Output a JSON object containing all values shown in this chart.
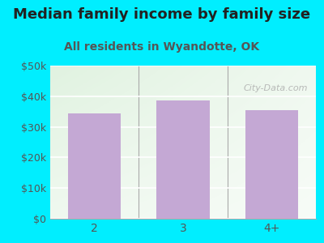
{
  "title": "Median family income by family size",
  "subtitle": "All residents in Wyandotte, OK",
  "categories": [
    "2",
    "3",
    "4+"
  ],
  "values": [
    34500,
    38500,
    35500
  ],
  "bar_color": "#c4a8d4",
  "background_outer": "#00eeff",
  "background_inner_topleft": "#d8eecc",
  "background_inner_right": "#f8fff8",
  "ylim": [
    0,
    50000
  ],
  "yticks": [
    0,
    10000,
    20000,
    30000,
    40000,
    50000
  ],
  "ytick_labels": [
    "$0",
    "$10k",
    "$20k",
    "$30k",
    "$40k",
    "$50k"
  ],
  "title_fontsize": 13,
  "subtitle_fontsize": 10,
  "title_color": "#222222",
  "subtitle_color": "#555555",
  "tick_color": "#555555",
  "bar_width": 0.6,
  "watermark_text": "City-Data.com"
}
